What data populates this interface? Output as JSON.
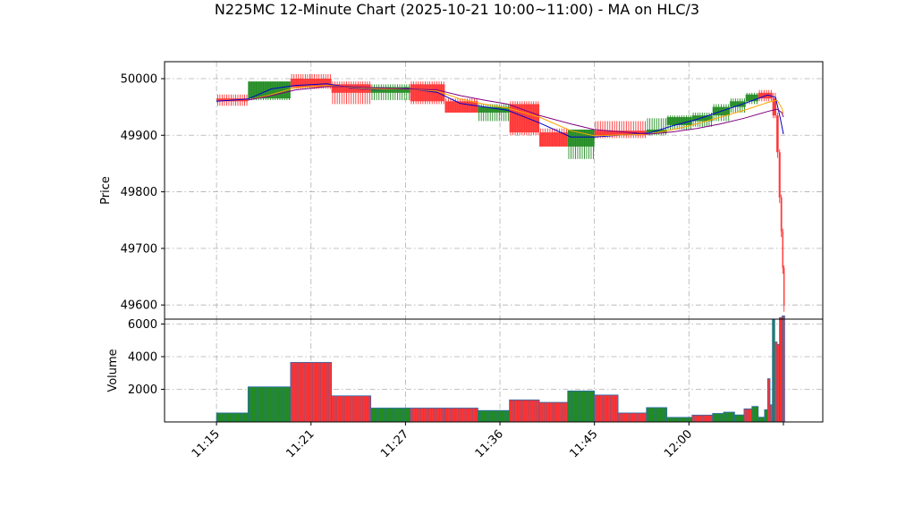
{
  "title": "N225MC 12-Minute Chart (2025-10-21 10:00~11:00) - MA on HLC/3",
  "colors": {
    "up": "#228b22",
    "down": "#ff3333",
    "ma_fast": "#0000cc",
    "ma_mid": "#ffa500",
    "ma_slow": "#800080",
    "vol_edge": "#2b6cb0"
  },
  "chart_data": [
    {
      "type": "candlestick",
      "ylabel": "Price",
      "ylim": [
        49575,
        50030
      ],
      "yticks": [
        49600,
        49700,
        49800,
        49900,
        50000
      ],
      "grid": true,
      "xticks": [
        {
          "label": "11:15",
          "t": 0
        },
        {
          "label": "11:21",
          "t": 6
        },
        {
          "label": "11:27",
          "t": 12
        },
        {
          "label": "11:36",
          "t": 18
        },
        {
          "label": "11:45",
          "t": 24
        },
        {
          "label": "12:00",
          "t": 30
        },
        {
          "label": "",
          "t": 36
        }
      ],
      "candles": [
        {
          "t0": 0,
          "t1": 2,
          "o": 49965,
          "h": 49972,
          "l": 49952,
          "c": 49960
        },
        {
          "t0": 2,
          "t1": 4.7,
          "o": 49965,
          "h": 49995,
          "l": 49962,
          "c": 49995
        },
        {
          "t0": 4.7,
          "t1": 7.3,
          "o": 50000,
          "h": 50008,
          "l": 49982,
          "c": 49985
        },
        {
          "t0": 7.3,
          "t1": 9.8,
          "o": 49990,
          "h": 49995,
          "l": 49955,
          "c": 49975
        },
        {
          "t0": 9.8,
          "t1": 12.3,
          "o": 49975,
          "h": 49990,
          "l": 49962,
          "c": 49985
        },
        {
          "t0": 12.3,
          "t1": 14.5,
          "o": 49990,
          "h": 49995,
          "l": 49955,
          "c": 49960
        },
        {
          "t0": 14.5,
          "t1": 16.6,
          "o": 49960,
          "h": 49965,
          "l": 49940,
          "c": 49940
        },
        {
          "t0": 16.6,
          "t1": 18.6,
          "o": 49940,
          "h": 49955,
          "l": 49925,
          "c": 49950
        },
        {
          "t0": 18.6,
          "t1": 20.5,
          "o": 49955,
          "h": 49960,
          "l": 49900,
          "c": 49905
        },
        {
          "t0": 20.5,
          "t1": 22.3,
          "o": 49905,
          "h": 49912,
          "l": 49880,
          "c": 49880
        },
        {
          "t0": 22.3,
          "t1": 24,
          "o": 49880,
          "h": 49910,
          "l": 49858,
          "c": 49910
        },
        {
          "t0": 24,
          "t1": 27.3,
          "o": 49908,
          "h": 49925,
          "l": 49895,
          "c": 49900
        },
        {
          "t0": 27.3,
          "t1": 28.6,
          "o": 49905,
          "h": 49930,
          "l": 49900,
          "c": 49910
        },
        {
          "t0": 28.6,
          "t1": 30.2,
          "o": 49918,
          "h": 49935,
          "l": 49910,
          "c": 49932
        },
        {
          "t0": 30.2,
          "t1": 31.5,
          "o": 49925,
          "h": 49940,
          "l": 49915,
          "c": 49935
        },
        {
          "t0": 31.5,
          "t1": 32.6,
          "o": 49935,
          "h": 49955,
          "l": 49925,
          "c": 49950
        },
        {
          "t0": 32.6,
          "t1": 33.6,
          "o": 49950,
          "h": 49965,
          "l": 49940,
          "c": 49960
        },
        {
          "t0": 33.6,
          "t1": 34.4,
          "o": 49960,
          "h": 49975,
          "l": 49955,
          "c": 49972
        },
        {
          "t0": 34.4,
          "t1": 35.3,
          "o": 49975,
          "h": 49980,
          "l": 49960,
          "c": 49965
        },
        {
          "t0": 35.3,
          "t1": 35.55,
          "o": 49965,
          "h": 49975,
          "l": 49930,
          "c": 49935
        },
        {
          "t0": 35.55,
          "t1": 35.7,
          "o": 49935,
          "h": 49940,
          "l": 49860,
          "c": 49870
        },
        {
          "t0": 35.7,
          "t1": 35.82,
          "o": 49870,
          "h": 49875,
          "l": 49780,
          "c": 49790
        },
        {
          "t0": 35.82,
          "t1": 35.92,
          "o": 49790,
          "h": 49795,
          "l": 49720,
          "c": 49730
        },
        {
          "t0": 35.92,
          "t1": 36,
          "o": 49730,
          "h": 49735,
          "l": 49655,
          "c": 49665
        },
        {
          "t0": 36,
          "t1": 36.08,
          "o": 49665,
          "h": 49670,
          "l": 49588,
          "c": 49600
        }
      ],
      "ma": [
        {
          "color_key": "ma_fast",
          "points": [
            [
              0,
              49960
            ],
            [
              2,
              49964
            ],
            [
              3.5,
              49982
            ],
            [
              5,
              49988
            ],
            [
              7,
              49991
            ],
            [
              8.5,
              49984
            ],
            [
              10,
              49981
            ],
            [
              12,
              49983
            ],
            [
              14,
              49976
            ],
            [
              15.5,
              49956
            ],
            [
              17,
              49950
            ],
            [
              18.5,
              49944
            ],
            [
              20.5,
              49922
            ],
            [
              22.5,
              49897
            ],
            [
              24,
              49897
            ],
            [
              27.5,
              49904
            ],
            [
              29,
              49917
            ],
            [
              30.5,
              49928
            ],
            [
              32,
              49942
            ],
            [
              33.5,
              49956
            ],
            [
              35,
              49971
            ],
            [
              35.5,
              49967
            ],
            [
              35.8,
              49930
            ],
            [
              36,
              49902
            ]
          ]
        },
        {
          "color_key": "ma_mid",
          "points": [
            [
              2,
              49962
            ],
            [
              3.5,
              49972
            ],
            [
              5,
              49984
            ],
            [
              7,
              49988
            ],
            [
              8.5,
              49985
            ],
            [
              10,
              49982
            ],
            [
              12,
              49982
            ],
            [
              14,
              49978
            ],
            [
              15.5,
              49964
            ],
            [
              17,
              49955
            ],
            [
              18.5,
              49948
            ],
            [
              20.5,
              49932
            ],
            [
              22.5,
              49908
            ],
            [
              24,
              49899
            ],
            [
              27.5,
              49902
            ],
            [
              29,
              49910
            ],
            [
              30.5,
              49920
            ],
            [
              32,
              49932
            ],
            [
              33.5,
              49944
            ],
            [
              35,
              49958
            ],
            [
              35.6,
              49962
            ],
            [
              35.9,
              49948
            ],
            [
              36,
              49938
            ]
          ]
        },
        {
          "color_key": "ma_slow",
          "points": [
            [
              2,
              49962
            ],
            [
              3.5,
              49970
            ],
            [
              5,
              49980
            ],
            [
              7,
              49986
            ],
            [
              8.5,
              49986
            ],
            [
              10,
              49984
            ],
            [
              12,
              49982
            ],
            [
              14,
              49980
            ],
            [
              15.5,
              49970
            ],
            [
              17,
              49962
            ],
            [
              18.5,
              49955
            ],
            [
              20.5,
              49935
            ],
            [
              22.5,
              49920
            ],
            [
              24,
              49910
            ],
            [
              27.5,
              49902
            ],
            [
              29,
              49906
            ],
            [
              30.5,
              49912
            ],
            [
              32,
              49920
            ],
            [
              33.5,
              49930
            ],
            [
              35,
              49942
            ],
            [
              35.6,
              49946
            ],
            [
              35.9,
              49940
            ],
            [
              36,
              49932
            ]
          ]
        }
      ]
    },
    {
      "type": "bar",
      "ylabel": "Volume",
      "ylim": [
        0,
        6300
      ],
      "yticks": [
        2000,
        4000,
        6000
      ],
      "grid": true,
      "bars": [
        {
          "t0": 0,
          "t1": 2,
          "v": 550,
          "dir": "up"
        },
        {
          "t0": 2,
          "t1": 4.7,
          "v": 2150,
          "dir": "up"
        },
        {
          "t0": 4.7,
          "t1": 7.3,
          "v": 3650,
          "dir": "down"
        },
        {
          "t0": 7.3,
          "t1": 9.8,
          "v": 1600,
          "dir": "down"
        },
        {
          "t0": 9.8,
          "t1": 12.3,
          "v": 850,
          "dir": "up"
        },
        {
          "t0": 12.3,
          "t1": 14.5,
          "v": 850,
          "dir": "down"
        },
        {
          "t0": 14.5,
          "t1": 16.6,
          "v": 850,
          "dir": "down"
        },
        {
          "t0": 16.6,
          "t1": 18.6,
          "v": 700,
          "dir": "up"
        },
        {
          "t0": 18.6,
          "t1": 20.5,
          "v": 1350,
          "dir": "down"
        },
        {
          "t0": 20.5,
          "t1": 22.3,
          "v": 1200,
          "dir": "down"
        },
        {
          "t0": 22.3,
          "t1": 24,
          "v": 1900,
          "dir": "up"
        },
        {
          "t0": 24,
          "t1": 25.5,
          "v": 1650,
          "dir": "down"
        },
        {
          "t0": 25.5,
          "t1": 27.3,
          "v": 550,
          "dir": "down"
        },
        {
          "t0": 27.3,
          "t1": 28.6,
          "v": 880,
          "dir": "up"
        },
        {
          "t0": 28.6,
          "t1": 30.2,
          "v": 280,
          "dir": "up"
        },
        {
          "t0": 30.2,
          "t1": 31.5,
          "v": 420,
          "dir": "down"
        },
        {
          "t0": 31.5,
          "t1": 32.2,
          "v": 520,
          "dir": "up"
        },
        {
          "t0": 32.2,
          "t1": 32.9,
          "v": 600,
          "dir": "up"
        },
        {
          "t0": 32.9,
          "t1": 33.5,
          "v": 430,
          "dir": "up"
        },
        {
          "t0": 33.5,
          "t1": 34,
          "v": 800,
          "dir": "down"
        },
        {
          "t0": 34,
          "t1": 34.4,
          "v": 950,
          "dir": "up"
        },
        {
          "t0": 34.4,
          "t1": 34.8,
          "v": 290,
          "dir": "up"
        },
        {
          "t0": 34.8,
          "t1": 35,
          "v": 750,
          "dir": "up"
        },
        {
          "t0": 35,
          "t1": 35.15,
          "v": 2650,
          "dir": "down"
        },
        {
          "t0": 35.15,
          "t1": 35.3,
          "v": 1050,
          "dir": "down"
        },
        {
          "t0": 35.3,
          "t1": 35.45,
          "v": 6250,
          "dir": "up"
        },
        {
          "t0": 35.45,
          "t1": 35.6,
          "v": 4900,
          "dir": "down"
        },
        {
          "t0": 35.6,
          "t1": 35.75,
          "v": 4750,
          "dir": "down"
        },
        {
          "t0": 35.75,
          "t1": 35.92,
          "v": 6400,
          "dir": "down"
        },
        {
          "t0": 35.92,
          "t1": 36.08,
          "v": 6500,
          "dir": "down"
        }
      ]
    }
  ]
}
